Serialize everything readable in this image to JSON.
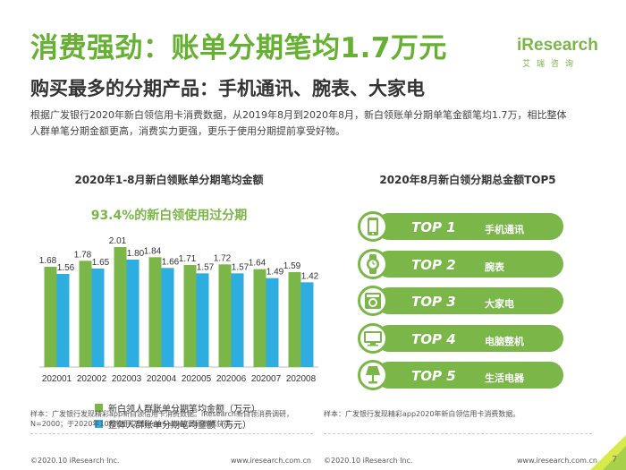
{
  "page": {
    "title": "消费强劲：账单分期笔均1.7万元",
    "subtitle": "购买最多的分期产品：手机通讯、腕表、大家电",
    "description": "根据广发银行2020年新白领信用卡消费数据，从2019年8月到2020年8月，新白领账单分期单笔金额笔均1.7万，相比整体人群单笔分期金额更高，消费实力更强，更乐于使用分期提前享受好物。"
  },
  "logo": {
    "main": "iResearch",
    "sub": "艾瑞咨询",
    "color": "#7ab648"
  },
  "left_chart": {
    "title": "2020年1-8月新白领账单分期笔均金额",
    "highlight": "93.4%的新白领使用过分期"
  },
  "chart_data": [
    {
      "type": "bar",
      "title": "2020年1-8月新白领账单分期笔均金额",
      "categories": [
        "202001",
        "202002",
        "202003",
        "202004",
        "202005",
        "202006",
        "202007",
        "202008"
      ],
      "series": [
        {
          "name": "新白领人群账单分期笔均金额（万元）",
          "color": "#7ab648",
          "values": [
            1.68,
            1.78,
            2.01,
            1.84,
            1.71,
            1.72,
            1.64,
            1.59
          ]
        },
        {
          "name": "整体人群账单分期笔均金额（万元）",
          "color": "#2eaee0",
          "values": [
            1.56,
            1.65,
            1.8,
            1.66,
            1.57,
            1.57,
            1.49,
            1.42
          ]
        }
      ],
      "ylim": [
        0,
        2.4
      ],
      "grid": false,
      "legend": "bottom"
    }
  ],
  "right_chart": {
    "title": "2020年8月新白领分期总金额TOP5",
    "items": [
      {
        "rank": "TOP 1",
        "name": "手机通讯",
        "icon": "phone-icon"
      },
      {
        "rank": "TOP 2",
        "name": "腕表",
        "icon": "watch-icon"
      },
      {
        "rank": "TOP 3",
        "name": "大家电",
        "icon": "washing-machine-icon"
      },
      {
        "rank": "TOP 4",
        "name": "电脑整机",
        "icon": "monitor-icon"
      },
      {
        "rank": "TOP 5",
        "name": "生活电器",
        "icon": "lamp-icon"
      }
    ]
  },
  "notes": {
    "left": "样本：广发银行发现精彩app新白领信用卡消费数据。iResearch新白领消费调研，N=2000；于2020年10月使用艾瑞iUserSurvey调研数据获得。",
    "right": "样本：广发银行发现精彩app2020年新白领信用卡消费数据。"
  },
  "footer": {
    "left_copyright": "©2020.10 iResearch Inc.",
    "left_site": "www.iresearch.com.cn",
    "right_copyright": "©2020.10 iResearch Inc.",
    "right_site": "www.iresearch.com.cn",
    "page_number": "7"
  },
  "colors": {
    "brand_green": "#7ab648",
    "title_green": "#66b032",
    "series_blue": "#2eaee0"
  }
}
